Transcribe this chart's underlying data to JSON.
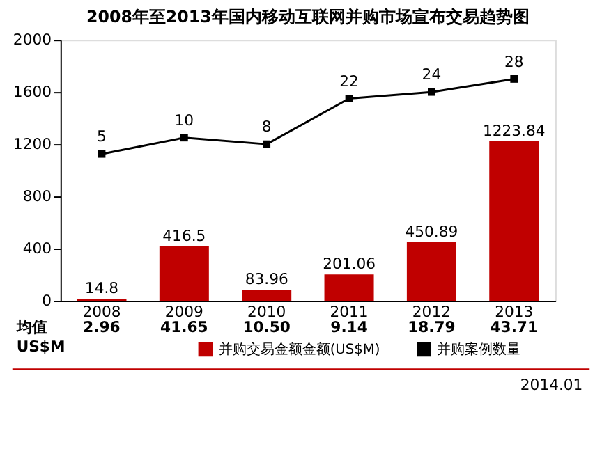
{
  "chart_data": {
    "type": "bar",
    "title": "2008年至2013年国内移动互联网并购市场宣布交易趋势图",
    "categories": [
      "2008",
      "2009",
      "2010",
      "2011",
      "2012",
      "2013"
    ],
    "series": [
      {
        "name": "并购交易金额金额(US$M)",
        "color": "#c00000",
        "values": [
          14.8,
          416.5,
          83.96,
          201.06,
          450.89,
          1223.84
        ]
      },
      {
        "name": "并购案例数量",
        "type": "line",
        "axis": "y2",
        "color": "#000000",
        "values": [
          5,
          10,
          8,
          22,
          24,
          28
        ]
      }
    ],
    "ylim": [
      0,
      2000
    ],
    "yticks": [
      0,
      400,
      800,
      1200,
      1600,
      2000
    ],
    "y2lim": [
      -40,
      40
    ],
    "data_labels": true,
    "marker": "square",
    "legend": "bottom",
    "grid": false,
    "annotations": [
      "均值\nUS$M",
      "2.96",
      "41.65",
      "10.50",
      "9.14",
      "18.79",
      "43.71",
      "2014.01"
    ]
  }
}
